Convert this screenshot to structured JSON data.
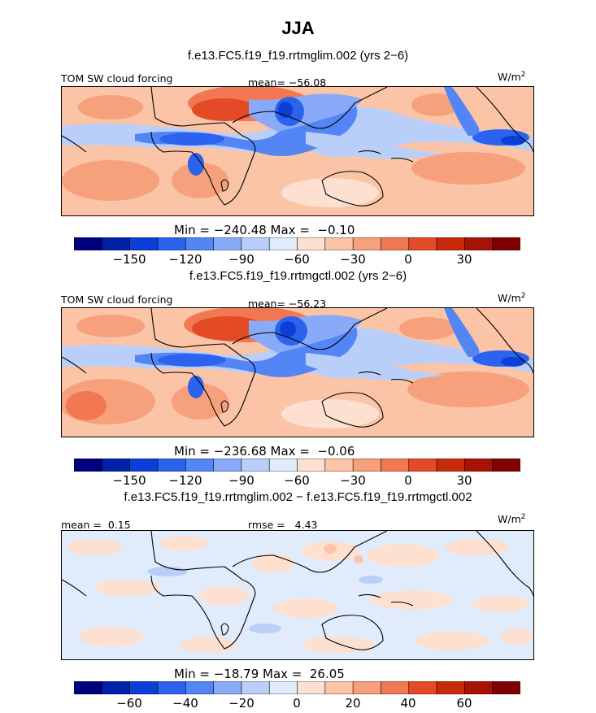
{
  "title": "JJA",
  "colors": {
    "scale": [
      "#00007f",
      "#0022a8",
      "#0c3fd6",
      "#2b63ee",
      "#5485f5",
      "#88aaf8",
      "#b9cffa",
      "#e0ebfc",
      "#fde0cf",
      "#fbc4a6",
      "#f7a07c",
      "#f17852",
      "#e34a25",
      "#c92a0c",
      "#a81205",
      "#7e0000"
    ]
  },
  "panels": [
    {
      "title": "f.e13.FC5.f19_f19.rrtmglim.002 (yrs 2-6)",
      "left_label": "TOM SW cloud forcing",
      "center_label": "mean= -56.08",
      "units": "W/m",
      "units_sup": "2",
      "minmax": "Min = -240.48 Max =  -0.10",
      "ticks": [
        "-150",
        "-120",
        "-90",
        "-60",
        "-30",
        "0",
        "30"
      ]
    },
    {
      "title": "f.e13.FC5.f19_f19.rrtmgctl.002 (yrs 2-6)",
      "left_label": "TOM SW cloud forcing",
      "center_label": "mean= -56.23",
      "units": "W/m",
      "units_sup": "2",
      "minmax": "Min = -236.68 Max =  -0.06",
      "ticks": [
        "-150",
        "-120",
        "-90",
        "-60",
        "-30",
        "0",
        "30"
      ]
    },
    {
      "title": "f.e13.FC5.f19_f19.rrtmglim.002 - f.e13.FC5.f19_f19.rrtmgctl.002",
      "left_label": "mean =  0.15",
      "center_label": "rmse =   4.43",
      "units": "W/m",
      "units_sup": "2",
      "minmax": "Min = -18.79 Max =  26.05",
      "ticks": [
        "-60",
        "-40",
        "-20",
        "0",
        "20",
        "40",
        "60"
      ]
    }
  ],
  "chart_data": [
    {
      "type": "heatmap",
      "title": "f.e13.FC5.f19_f19.rrtmglim.002 (yrs 2-6)",
      "variable": "TOM SW cloud forcing",
      "units": "W/m2",
      "mean": -56.08,
      "min": -240.48,
      "max": -0.1,
      "colorbar_ticks": [
        -150,
        -120,
        -90,
        -60,
        -30,
        0,
        30
      ],
      "colorbar_bins": 16
    },
    {
      "type": "heatmap",
      "title": "f.e13.FC5.f19_f19.rrtmgctl.002 (yrs 2-6)",
      "variable": "TOM SW cloud forcing",
      "units": "W/m2",
      "mean": -56.23,
      "min": -236.68,
      "max": -0.06,
      "colorbar_ticks": [
        -150,
        -120,
        -90,
        -60,
        -30,
        0,
        30
      ],
      "colorbar_bins": 16
    },
    {
      "type": "heatmap",
      "title": "f.e13.FC5.f19_f19.rrtmglim.002 - f.e13.FC5.f19_f19.rrtmgctl.002",
      "units": "W/m2",
      "mean": 0.15,
      "rmse": 4.43,
      "min": -18.79,
      "max": 26.05,
      "colorbar_ticks": [
        -60,
        -40,
        -20,
        0,
        20,
        40,
        60
      ],
      "colorbar_bins": 16
    }
  ]
}
